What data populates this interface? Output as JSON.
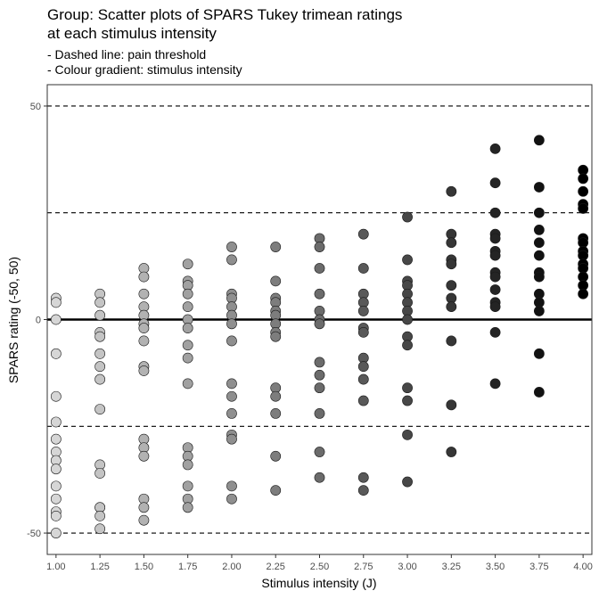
{
  "title_lines": [
    "Group: Scatter plots of SPARS Tukey trimean ratings",
    "at each stimulus intensity"
  ],
  "subtitle_lines": [
    "- Dashed line: pain threshold",
    "- Colour gradient: stimulus intensity"
  ],
  "chart_data": {
    "type": "scatter",
    "title": "Group: Scatter plots of SPARS Tukey trimean ratings at each stimulus intensity",
    "subtitle": "- Dashed line: pain threshold\n- Colour gradient: stimulus intensity",
    "xlabel": "Stimulus intensity (J)",
    "ylabel": "SPARS rating (-50, 50)",
    "x_ticks": [
      "1.00",
      "1.25",
      "1.50",
      "1.75",
      "2.00",
      "2.25",
      "2.50",
      "2.75",
      "3.00",
      "3.25",
      "3.50",
      "3.75",
      "4.00"
    ],
    "y_ticks": [
      -50,
      0,
      50
    ],
    "ylim": [
      -55,
      55
    ],
    "xlim": [
      0.95,
      4.05
    ],
    "reference_lines": {
      "solid": [
        0
      ],
      "dashed": [
        -50,
        -25,
        25,
        50
      ]
    },
    "grid": false,
    "colour_gradient": {
      "low": "#d6d6d6",
      "high": "#000000"
    },
    "groups": [
      {
        "x": 1.0,
        "values": [
          5,
          4,
          0,
          -8,
          -18,
          -24,
          -28,
          -31,
          -33,
          -35,
          -39,
          -42,
          -45,
          -46,
          -50
        ]
      },
      {
        "x": 1.25,
        "values": [
          6,
          4,
          1,
          -3,
          -4,
          -8,
          -11,
          -14,
          -21,
          -34,
          -36,
          -44,
          -44,
          -46,
          -49
        ]
      },
      {
        "x": 1.5,
        "values": [
          12,
          10,
          6,
          3,
          1,
          -1,
          -2,
          -5,
          -11,
          -12,
          -28,
          -30,
          -32,
          -42,
          -44,
          -47
        ]
      },
      {
        "x": 1.75,
        "values": [
          13,
          9,
          8,
          6,
          3,
          0,
          -2,
          -6,
          -9,
          -15,
          -30,
          -32,
          -34,
          -39,
          -42,
          -44
        ]
      },
      {
        "x": 2.0,
        "values": [
          17,
          14,
          6,
          5,
          3,
          1,
          -1,
          -5,
          -15,
          -18,
          -22,
          -27,
          -28,
          -39,
          -42
        ]
      },
      {
        "x": 2.25,
        "values": [
          17,
          9,
          5,
          4,
          2,
          1,
          -1,
          -3,
          -4,
          -16,
          -18,
          -22,
          -32,
          -40
        ]
      },
      {
        "x": 2.5,
        "values": [
          19,
          17,
          12,
          6,
          2,
          0,
          -1,
          -10,
          -13,
          -16,
          -22,
          -31,
          -37
        ]
      },
      {
        "x": 2.75,
        "values": [
          20,
          12,
          6,
          4,
          2,
          -2,
          -3,
          -9,
          -11,
          -14,
          -19,
          -37,
          -40
        ]
      },
      {
        "x": 3.0,
        "values": [
          24,
          14,
          9,
          8,
          6,
          4,
          2,
          0,
          -4,
          -6,
          -16,
          -19,
          -27,
          -38
        ]
      },
      {
        "x": 3.25,
        "values": [
          30,
          20,
          18,
          14,
          13,
          8,
          5,
          3,
          -5,
          -20,
          -31
        ]
      },
      {
        "x": 3.5,
        "values": [
          40,
          32,
          25,
          20,
          19,
          16,
          15,
          11,
          10,
          7,
          4,
          3,
          -3,
          -15
        ]
      },
      {
        "x": 3.75,
        "values": [
          42,
          31,
          25,
          21,
          18,
          15,
          11,
          10,
          6,
          4,
          2,
          -8,
          -17
        ]
      },
      {
        "x": 4.0,
        "values": [
          35,
          33,
          30,
          27,
          26,
          19,
          18,
          16,
          15,
          13,
          12,
          10,
          8,
          6
        ]
      }
    ]
  }
}
